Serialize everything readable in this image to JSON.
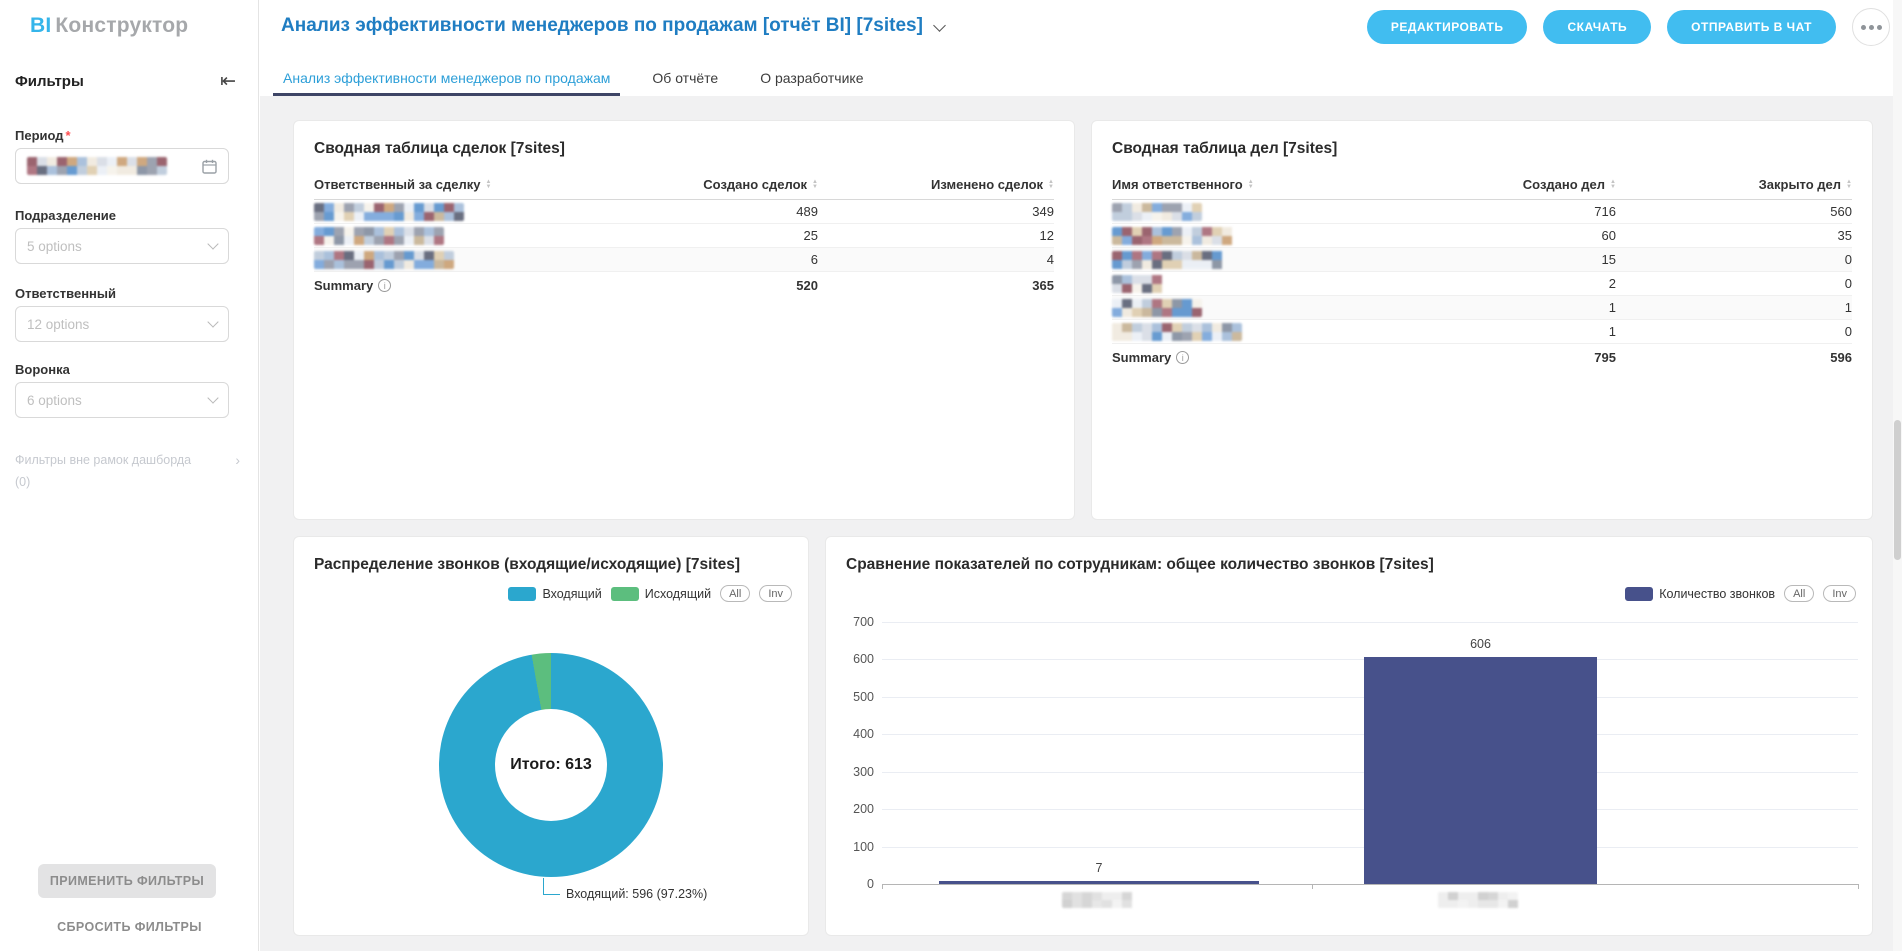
{
  "app": {
    "logo_primary": "BI",
    "logo_secondary": "Конструктор"
  },
  "header": {
    "title": "Анализ эффективности менеджеров по продажам [отчёт BI] [7sites]",
    "buttons": {
      "edit": "РЕДАКТИРОВАТЬ",
      "download": "СКАЧАТЬ",
      "send_to_chat": "ОТПРАВИТЬ В ЧАТ"
    }
  },
  "tabs": {
    "items": [
      {
        "label": "Анализ эффективности менеджеров по продажам",
        "active": true
      },
      {
        "label": "Об отчёте",
        "active": false
      },
      {
        "label": "О разработчике",
        "active": false
      }
    ]
  },
  "sidebar": {
    "title": "Фильтры",
    "filters": [
      {
        "label": "Период",
        "required": true,
        "type": "date",
        "value_redacted": true
      },
      {
        "label": "Подразделение",
        "placeholder": "5 options"
      },
      {
        "label": "Ответственный",
        "placeholder": "12 options"
      },
      {
        "label": "Воронка",
        "placeholder": "6 options"
      }
    ],
    "outer_filters_label": "Фильтры вне рамок дашборда",
    "outer_filters_count": "(0)",
    "apply_button": "ПРИМЕНИТЬ ФИЛЬТРЫ",
    "reset_button": "СБРОСИТЬ ФИЛЬТРЫ"
  },
  "tables": {
    "deals": {
      "title": "Сводная таблица сделок [7sites]",
      "columns": [
        "Ответственный за сделку",
        "Создано сделок",
        "Изменено сделок"
      ],
      "rows": [
        {
          "name_redacted": true,
          "values": [
            489,
            349
          ]
        },
        {
          "name_redacted": true,
          "values": [
            25,
            12
          ]
        },
        {
          "name_redacted": true,
          "values": [
            6,
            4
          ]
        }
      ],
      "summary_label": "Summary",
      "summary": [
        520,
        365
      ]
    },
    "activities": {
      "title": "Сводная таблица дел [7sites]",
      "columns": [
        "Имя ответственного",
        "Создано дел",
        "Закрыто дел"
      ],
      "rows": [
        {
          "name_redacted": true,
          "values": [
            716,
            560
          ]
        },
        {
          "name_redacted": true,
          "values": [
            60,
            35
          ]
        },
        {
          "name_redacted": true,
          "values": [
            15,
            0
          ]
        },
        {
          "name_redacted": true,
          "values": [
            2,
            0
          ]
        },
        {
          "name_redacted": true,
          "values": [
            1,
            1
          ]
        },
        {
          "name_redacted": true,
          "values": [
            1,
            0
          ]
        }
      ],
      "summary_label": "Summary",
      "summary": [
        795,
        596
      ]
    }
  },
  "chart_data": [
    {
      "type": "pie",
      "donut": true,
      "title": "Распределение звонков (входящие/исходящие) [7sites]",
      "series": [
        {
          "name": "Входящий",
          "value": 596,
          "pct": 97.23,
          "color": "#2ba7ce"
        },
        {
          "name": "Исходящий",
          "value": 17,
          "pct": 2.77,
          "color": "#5cbe7e"
        }
      ],
      "total": 613,
      "center_label": "Итого: 613",
      "callout_label": "Входящий: 596 (97.23%)",
      "filter_pills": [
        "All",
        "Inv"
      ],
      "legend_position": "top-right"
    },
    {
      "type": "bar",
      "title": "Сравнение показателей по сотрудникам: общее количество звонков [7sites]",
      "series": [
        {
          "name": "Количество звонков",
          "color": "#47518b",
          "values": [
            7,
            606
          ]
        }
      ],
      "categories_redacted": true,
      "data_labels": [
        "7",
        "606"
      ],
      "ylim": [
        0,
        700
      ],
      "yticks": [
        700,
        600,
        500,
        400,
        300,
        200,
        100,
        0
      ],
      "grid": true,
      "filter_pills": [
        "All",
        "Inv"
      ],
      "legend_position": "top-right"
    }
  ]
}
